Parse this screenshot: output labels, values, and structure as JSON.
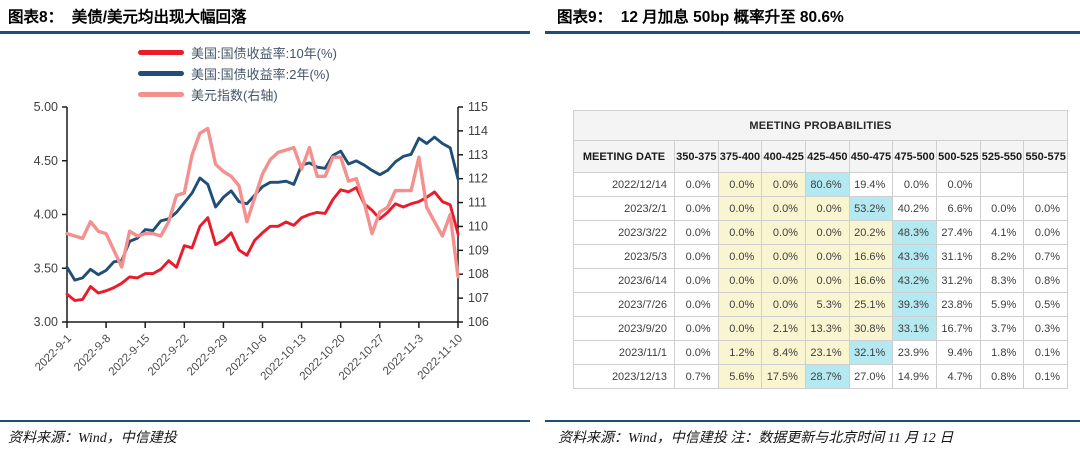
{
  "figure_left": {
    "title": "图表8：  美债/美元均出现大幅回落",
    "source": "资料来源：Wind，中信建投",
    "chart_data": {
      "type": "line",
      "n_points": 51,
      "x_tick_labels": [
        "2022-9-1",
        "2022-9-8",
        "2022-9-15",
        "2022-9-22",
        "2022-9-29",
        "2022-10-6",
        "2022-10-13",
        "2022-10-20",
        "2022-10-27",
        "2022-11-3",
        "2022-11-10"
      ],
      "x_tick_indices": [
        0,
        5,
        10,
        15,
        20,
        25,
        30,
        35,
        40,
        45,
        50
      ],
      "left_axis": {
        "range": [
          3.0,
          5.0
        ],
        "tick_labels": [
          "5.00",
          "4.50",
          "4.00",
          "3.50",
          "3.00"
        ],
        "tick_values": [
          5.0,
          4.5,
          4.0,
          3.5,
          3.0
        ]
      },
      "right_axis": {
        "range": [
          106,
          115
        ],
        "tick_labels": [
          "115",
          "114",
          "113",
          "112",
          "111",
          "110",
          "109",
          "108",
          "107",
          "106"
        ],
        "tick_values": [
          115,
          114,
          113,
          112,
          111,
          110,
          109,
          108,
          107,
          106
        ]
      },
      "grid": false,
      "legend_position": "top",
      "series": [
        {
          "name": "美国:国债收益率:10年(%)",
          "axis": "left",
          "color": "#EA1B2B",
          "values": [
            3.26,
            3.2,
            3.21,
            3.33,
            3.27,
            3.29,
            3.32,
            3.36,
            3.42,
            3.41,
            3.45,
            3.45,
            3.49,
            3.57,
            3.51,
            3.71,
            3.69,
            3.89,
            3.97,
            3.72,
            3.76,
            3.83,
            3.67,
            3.62,
            3.76,
            3.83,
            3.89,
            3.89,
            3.93,
            3.9,
            3.97,
            4.0,
            4.02,
            4.01,
            4.14,
            4.23,
            4.21,
            4.25,
            4.1,
            4.04,
            3.96,
            4.02,
            4.1,
            4.07,
            4.1,
            4.12,
            4.16,
            4.21,
            4.12,
            4.09,
            3.82
          ]
        },
        {
          "name": "美国:国债收益率:2年(%)",
          "axis": "left",
          "color": "#1F4E79",
          "values": [
            3.51,
            3.39,
            3.41,
            3.49,
            3.44,
            3.48,
            3.56,
            3.57,
            3.75,
            3.78,
            3.86,
            3.85,
            3.94,
            3.96,
            4.02,
            4.11,
            4.2,
            4.34,
            4.28,
            4.07,
            4.16,
            4.22,
            4.12,
            4.1,
            4.18,
            4.26,
            4.3,
            4.3,
            4.31,
            4.28,
            4.46,
            4.48,
            4.44,
            4.43,
            4.55,
            4.59,
            4.47,
            4.5,
            4.46,
            4.41,
            4.37,
            4.41,
            4.49,
            4.54,
            4.56,
            4.71,
            4.66,
            4.72,
            4.66,
            4.62,
            4.33
          ]
        },
        {
          "name": "美元指数(右轴)",
          "axis": "right",
          "color": "#F4908E",
          "values": [
            109.7,
            109.6,
            109.5,
            110.2,
            109.8,
            109.7,
            109.0,
            108.3,
            109.8,
            109.6,
            109.7,
            109.7,
            109.6,
            110.2,
            111.3,
            111.4,
            113.0,
            113.9,
            114.1,
            112.6,
            112.3,
            112.1,
            111.7,
            110.2,
            111.2,
            112.2,
            112.8,
            113.1,
            113.2,
            113.3,
            112.4,
            113.3,
            112.1,
            112.1,
            112.9,
            112.9,
            111.9,
            112.0,
            111.0,
            109.7,
            110.6,
            110.8,
            111.5,
            111.5,
            111.5,
            112.9,
            110.8,
            110.2,
            109.6,
            110.5,
            107.9
          ]
        }
      ]
    }
  },
  "figure_right": {
    "title": "图表9：  12 月加息 50bp 概率升至 80.6%",
    "source": "资料来源：Wind，中信建投 注：数据更新与北京时间 11 月 12 日",
    "table": {
      "title": "MEETING PROBABILITIES",
      "columns": [
        "MEETING DATE",
        "350-375",
        "375-400",
        "400-425",
        "425-450",
        "450-475",
        "475-500",
        "500-525",
        "525-550",
        "550-575"
      ],
      "rows": [
        {
          "date": "2022/12/14",
          "values": [
            "0.0%",
            "0.0%",
            "0.0%",
            "80.6%",
            "19.4%",
            "0.0%",
            "0.0%",
            "",
            ""
          ],
          "max_col": 3
        },
        {
          "date": "2023/2/1",
          "values": [
            "0.0%",
            "0.0%",
            "0.0%",
            "0.0%",
            "53.2%",
            "40.2%",
            "6.6%",
            "0.0%",
            "0.0%"
          ],
          "max_col": 4
        },
        {
          "date": "2023/3/22",
          "values": [
            "0.0%",
            "0.0%",
            "0.0%",
            "0.0%",
            "20.2%",
            "48.3%",
            "27.4%",
            "4.1%",
            "0.0%"
          ],
          "max_col": 5
        },
        {
          "date": "2023/5/3",
          "values": [
            "0.0%",
            "0.0%",
            "0.0%",
            "0.0%",
            "16.6%",
            "43.3%",
            "31.1%",
            "8.2%",
            "0.7%"
          ],
          "max_col": 5
        },
        {
          "date": "2023/6/14",
          "values": [
            "0.0%",
            "0.0%",
            "0.0%",
            "0.0%",
            "16.6%",
            "43.2%",
            "31.2%",
            "8.3%",
            "0.8%"
          ],
          "max_col": 5
        },
        {
          "date": "2023/7/26",
          "values": [
            "0.0%",
            "0.0%",
            "0.0%",
            "5.3%",
            "25.1%",
            "39.3%",
            "23.8%",
            "5.9%",
            "0.5%"
          ],
          "max_col": 5
        },
        {
          "date": "2023/9/20",
          "values": [
            "0.0%",
            "0.0%",
            "2.1%",
            "13.3%",
            "30.8%",
            "33.1%",
            "16.7%",
            "3.7%",
            "0.3%"
          ],
          "max_col": 5
        },
        {
          "date": "2023/11/1",
          "values": [
            "0.0%",
            "1.2%",
            "8.4%",
            "23.1%",
            "32.1%",
            "23.9%",
            "9.4%",
            "1.8%",
            "0.1%"
          ],
          "max_col": 4
        },
        {
          "date": "2023/12/13",
          "values": [
            "0.7%",
            "5.6%",
            "17.5%",
            "28.7%",
            "27.0%",
            "14.9%",
            "4.7%",
            "0.8%",
            "0.1%"
          ],
          "max_col": 3
        }
      ],
      "highlight_colors": {
        "max_cell": "#B5E9F2",
        "path_cell": "#FAF5D1"
      }
    }
  },
  "colors": {
    "rule": "#1F4E79",
    "axis": "#1a1a1a",
    "axis_label": "#3f3f3f",
    "legend_text": "#44546A"
  }
}
